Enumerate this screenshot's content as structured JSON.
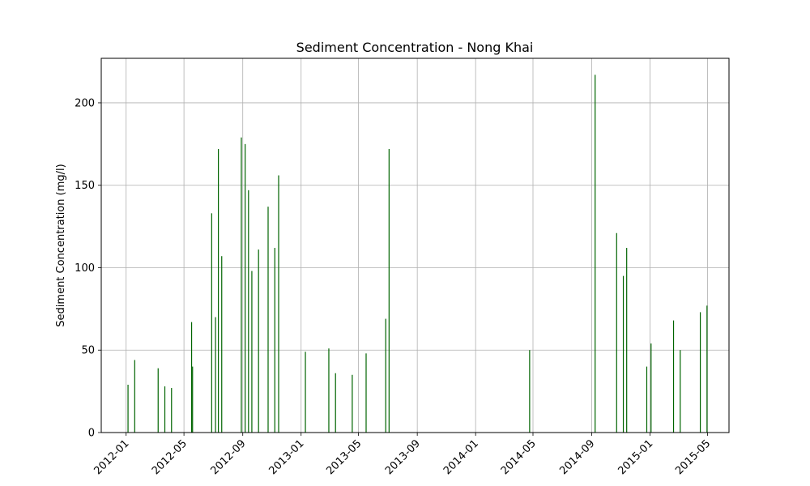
{
  "chart_data": {
    "type": "bar",
    "title": "Sediment Concentration - Nong Khai",
    "xlabel": "",
    "ylabel": "Sediment Concentration (mg/l)",
    "xlim": [
      "2011-11-10",
      "2015-06-15"
    ],
    "ylim": [
      0,
      227
    ],
    "grid": true,
    "bar_color": "#006400",
    "x_ticks": [
      "2012-01",
      "2012-05",
      "2012-09",
      "2013-01",
      "2013-05",
      "2013-09",
      "2014-01",
      "2014-05",
      "2014-09",
      "2015-01",
      "2015-05"
    ],
    "y_ticks": [
      0,
      50,
      100,
      150,
      200
    ],
    "points": [
      {
        "date": "2012-01-05",
        "value": 29
      },
      {
        "date": "2012-01-19",
        "value": 44
      },
      {
        "date": "2012-03-08",
        "value": 39
      },
      {
        "date": "2012-03-22",
        "value": 28
      },
      {
        "date": "2012-04-05",
        "value": 27
      },
      {
        "date": "2012-05-17",
        "value": 67
      },
      {
        "date": "2012-05-19",
        "value": 40
      },
      {
        "date": "2012-06-28",
        "value": 133
      },
      {
        "date": "2012-07-06",
        "value": 70
      },
      {
        "date": "2012-07-12",
        "value": 172
      },
      {
        "date": "2012-07-19",
        "value": 107
      },
      {
        "date": "2012-08-29",
        "value": 179
      },
      {
        "date": "2012-09-06",
        "value": 175
      },
      {
        "date": "2012-09-13",
        "value": 147
      },
      {
        "date": "2012-09-20",
        "value": 98
      },
      {
        "date": "2012-10-04",
        "value": 111
      },
      {
        "date": "2012-10-24",
        "value": 137
      },
      {
        "date": "2012-11-07",
        "value": 112
      },
      {
        "date": "2012-11-15",
        "value": 156
      },
      {
        "date": "2013-01-10",
        "value": 49
      },
      {
        "date": "2013-02-28",
        "value": 51
      },
      {
        "date": "2013-03-14",
        "value": 36
      },
      {
        "date": "2013-04-18",
        "value": 35
      },
      {
        "date": "2013-05-17",
        "value": 48
      },
      {
        "date": "2013-06-27",
        "value": 69
      },
      {
        "date": "2013-07-04",
        "value": 172
      },
      {
        "date": "2014-04-24",
        "value": 50
      },
      {
        "date": "2014-09-08",
        "value": 217
      },
      {
        "date": "2014-10-23",
        "value": 121
      },
      {
        "date": "2014-11-06",
        "value": 95
      },
      {
        "date": "2014-11-13",
        "value": 112
      },
      {
        "date": "2014-12-25",
        "value": 40
      },
      {
        "date": "2015-01-03",
        "value": 54
      },
      {
        "date": "2015-02-19",
        "value": 68
      },
      {
        "date": "2015-03-05",
        "value": 50
      },
      {
        "date": "2015-04-16",
        "value": 73
      },
      {
        "date": "2015-04-30",
        "value": 77
      }
    ]
  }
}
